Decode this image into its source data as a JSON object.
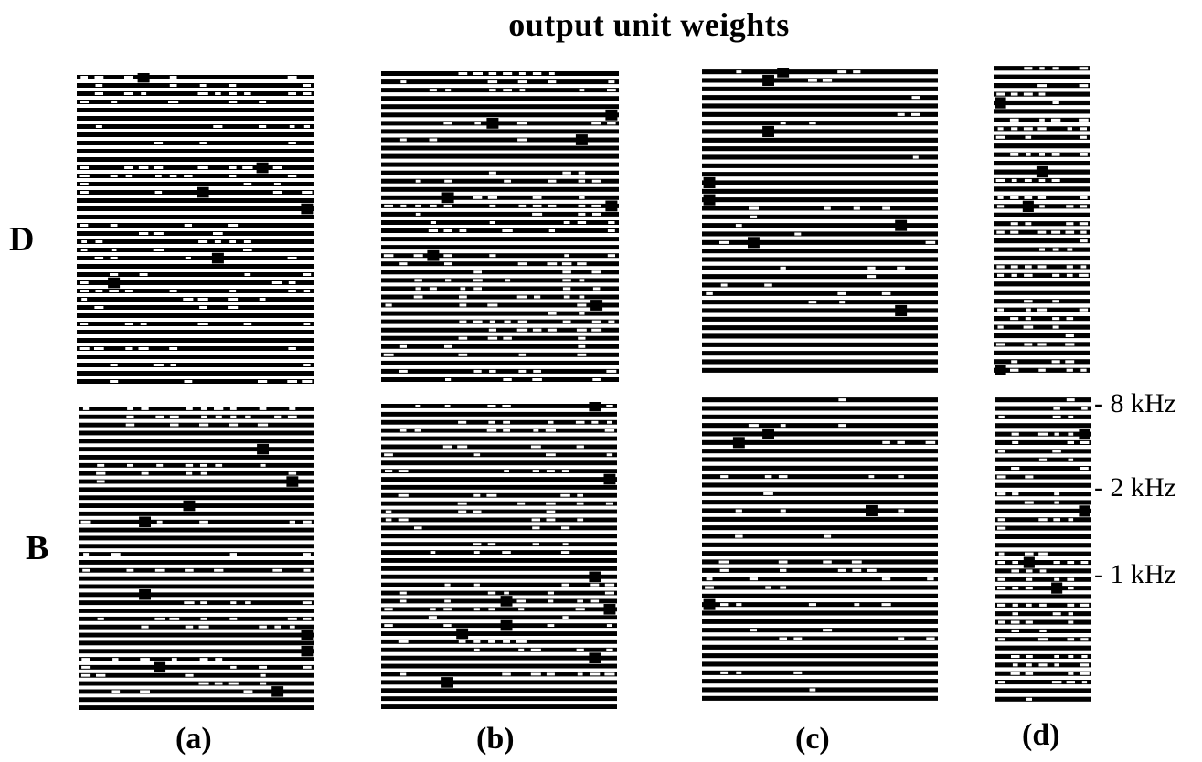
{
  "figure": {
    "title": "output unit weights",
    "row_labels": [
      "D",
      "B"
    ],
    "panel_labels": [
      "(a)",
      "(b)",
      "(c)",
      "(d)"
    ],
    "frequency_labels": [
      "- 8 kHz",
      "- 2 kHz",
      "- 1 kHz"
    ],
    "ink_color": "#000000",
    "background_color": "#ffffff"
  },
  "panels": [
    {
      "name": "panel-D-a",
      "row": "D",
      "column": "(a)",
      "rows": 38,
      "seed": 11,
      "density": 0.34
    },
    {
      "name": "panel-D-b",
      "row": "D",
      "column": "(b)",
      "rows": 38,
      "seed": 23,
      "density": 0.3
    },
    {
      "name": "panel-D-c",
      "row": "D",
      "column": "(c)",
      "rows": 36,
      "seed": 37,
      "density": 0.12
    },
    {
      "name": "panel-D-d",
      "row": "D",
      "column": "(d)",
      "rows": 36,
      "seed": 41,
      "density": 0.45
    },
    {
      "name": "panel-B-a",
      "row": "B",
      "column": "(a)",
      "rows": 38,
      "seed": 53,
      "density": 0.34
    },
    {
      "name": "panel-B-b",
      "row": "B",
      "column": "(b)",
      "rows": 38,
      "seed": 67,
      "density": 0.28
    },
    {
      "name": "panel-B-c",
      "row": "B",
      "column": "(c)",
      "rows": 36,
      "seed": 71,
      "density": 0.18
    },
    {
      "name": "panel-B-d",
      "row": "B",
      "column": "(d)",
      "rows": 36,
      "seed": 83,
      "density": 0.45
    }
  ]
}
